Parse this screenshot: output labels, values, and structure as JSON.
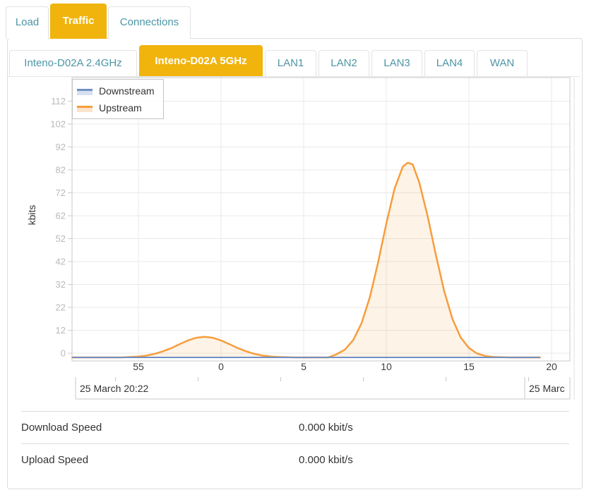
{
  "tabs": {
    "items": [
      {
        "label": "Load",
        "active": false
      },
      {
        "label": "Traffic",
        "active": true
      },
      {
        "label": "Connections",
        "active": false
      }
    ]
  },
  "subtabs": {
    "items": [
      {
        "label": "Inteno-D02A 2.4GHz",
        "active": false
      },
      {
        "label": "Inteno-D02A 5GHz",
        "active": true
      },
      {
        "label": "LAN1",
        "active": false
      },
      {
        "label": "LAN2",
        "active": false
      },
      {
        "label": "LAN3",
        "active": false
      },
      {
        "label": "LAN4",
        "active": false
      },
      {
        "label": "WAN",
        "active": false
      }
    ]
  },
  "colors": {
    "active_tab_bg": "#F0B40D",
    "tab_text_teal": "#4D95A6",
    "downstream_blue": "#6F90C6",
    "upstream_orange": "#F79D3C",
    "grid_line": "#e9e9e9",
    "plot_border": "#c9c9c9"
  },
  "chart_data": {
    "type": "area",
    "title": "",
    "xlabel": "",
    "ylabel": "kbits",
    "legend": {
      "position": "top-left",
      "entries": [
        {
          "name": "Downstream",
          "color": "#6F90C6",
          "fill_tint": "#D6E0F0"
        },
        {
          "name": "Upstream",
          "color": "#F79D3C",
          "fill_tint": "#FCE3CB"
        }
      ]
    },
    "x_axis": {
      "unit": "minute of hour",
      "range_minutes": [
        51,
        81.1
      ],
      "ticks": [
        {
          "t": 55,
          "label": "55"
        },
        {
          "t": 60,
          "label": "0"
        },
        {
          "t": 65,
          "label": "5"
        },
        {
          "t": 70,
          "label": "10"
        },
        {
          "t": 75,
          "label": "15"
        },
        {
          "t": 80,
          "label": "20"
        }
      ]
    },
    "y_axis": {
      "tick_labels": [
        "0",
        "12",
        "22",
        "32",
        "42",
        "52",
        "62",
        "72",
        "82",
        "92",
        "102",
        "112"
      ],
      "range": [
        0,
        118
      ],
      "grid": true
    },
    "date_axis": {
      "left_label": "25 March 20:22",
      "right_label_clipped": "25 Marc"
    },
    "series": [
      {
        "name": "Downstream",
        "color": "#6F90C6",
        "points": [
          [
            51,
            0
          ],
          [
            79.3,
            0
          ]
        ]
      },
      {
        "name": "Upstream",
        "color": "#F79D3C",
        "area_fill": "rgba(247,157,60,0.12)",
        "points": [
          [
            51,
            0
          ],
          [
            54,
            0
          ],
          [
            54.5,
            0.2
          ],
          [
            55,
            0.4
          ],
          [
            55.5,
            0.8
          ],
          [
            56,
            1.6
          ],
          [
            56.5,
            2.7
          ],
          [
            57,
            4.1
          ],
          [
            57.5,
            5.8
          ],
          [
            58,
            7.4
          ],
          [
            58.5,
            8.6
          ],
          [
            59,
            9
          ],
          [
            59.5,
            8.6
          ],
          [
            60,
            7.4
          ],
          [
            60.5,
            5.8
          ],
          [
            61,
            4.1
          ],
          [
            61.5,
            2.7
          ],
          [
            62,
            1.6
          ],
          [
            62.5,
            0.8
          ],
          [
            63,
            0.4
          ],
          [
            63.5,
            0.2
          ],
          [
            64,
            0.1
          ],
          [
            64.5,
            0
          ],
          [
            66.5,
            0
          ],
          [
            67,
            1.4
          ],
          [
            67.5,
            3.4
          ],
          [
            68,
            7.6
          ],
          [
            68.5,
            14.9
          ],
          [
            69,
            26.2
          ],
          [
            69.5,
            41.4
          ],
          [
            70,
            58.4
          ],
          [
            70.5,
            73.7
          ],
          [
            71,
            83.3
          ],
          [
            71.3,
            85
          ],
          [
            71.6,
            84.2
          ],
          [
            72,
            76.2
          ],
          [
            72.5,
            61.7
          ],
          [
            73,
            44.7
          ],
          [
            73.5,
            29
          ],
          [
            74,
            16.8
          ],
          [
            74.5,
            8.7
          ],
          [
            75,
            4.1
          ],
          [
            75.5,
            1.7
          ],
          [
            76,
            0.6
          ],
          [
            76.5,
            0.2
          ],
          [
            77,
            0.1
          ],
          [
            77.5,
            0
          ],
          [
            79.3,
            0
          ]
        ]
      }
    ]
  },
  "speeds": {
    "rows": [
      {
        "label": "Download Speed",
        "value": "0.000 kbit/s"
      },
      {
        "label": "Upload Speed",
        "value": "0.000 kbit/s"
      }
    ]
  }
}
